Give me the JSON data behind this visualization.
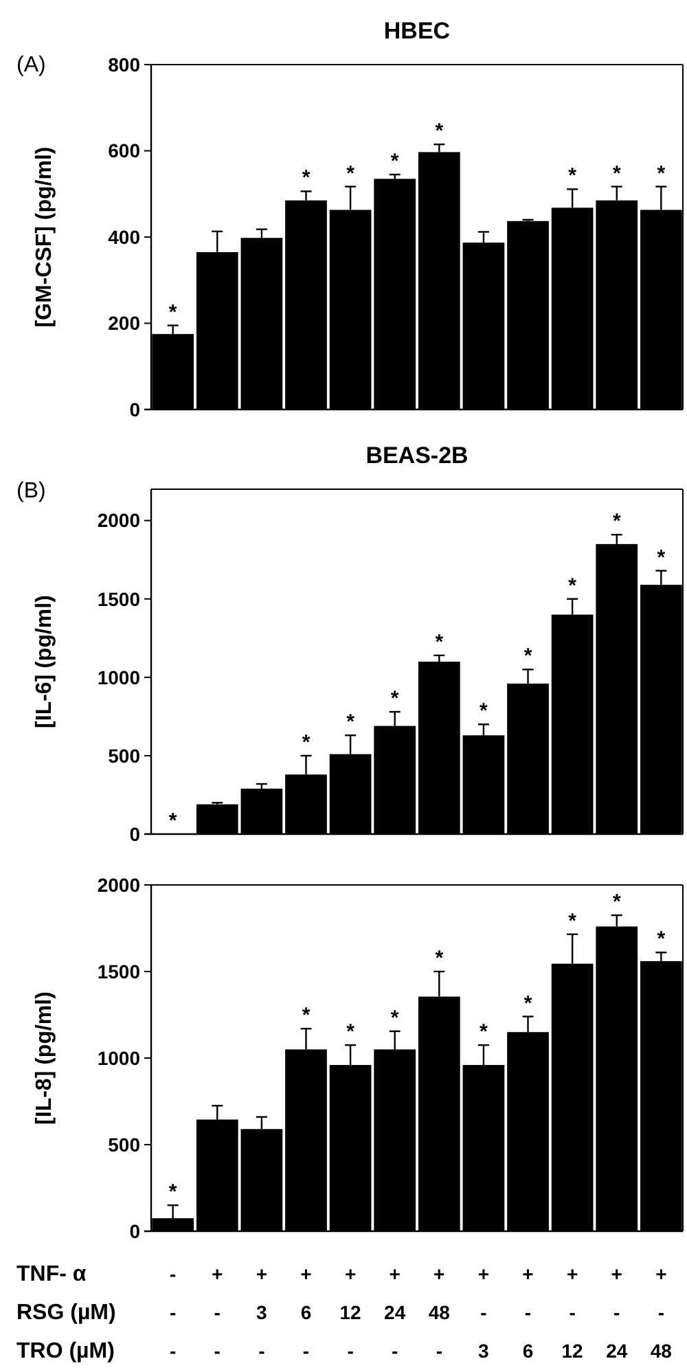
{
  "chart_data": [
    {
      "type": "bar",
      "title": "HBEC",
      "ylabel": "[GM-CSF] (pg/ml)",
      "annotations": [
        "(A)"
      ],
      "categories": [
        null,
        null,
        null,
        null,
        null,
        null,
        null,
        null,
        null,
        null,
        null,
        null
      ],
      "values": [
        175,
        365,
        398,
        485,
        463,
        535,
        597,
        387,
        437,
        468,
        485,
        463
      ],
      "errors": [
        20,
        48,
        20,
        21,
        54,
        10,
        18,
        25,
        3,
        43,
        32,
        54
      ],
      "value_labels": [
        "*",
        null,
        null,
        "*",
        "*",
        "*",
        "*",
        null,
        null,
        "*",
        "*",
        "*"
      ],
      "color": "#000000",
      "ylim": [
        0,
        800
      ],
      "yticks": [
        0,
        200,
        400,
        600,
        800
      ],
      "grid": false
    },
    {
      "type": "bar",
      "title": "BEAS-2B",
      "ylabel": "[IL-6] (pg/ml)",
      "annotations": [
        "(B)"
      ],
      "categories": [
        null,
        null,
        null,
        null,
        null,
        null,
        null,
        null,
        null,
        null,
        null,
        null
      ],
      "values": [
        0,
        190,
        290,
        380,
        510,
        690,
        1100,
        630,
        960,
        1400,
        1850,
        1590
      ],
      "errors": [
        null,
        10,
        30,
        120,
        120,
        90,
        40,
        70,
        90,
        100,
        60,
        90
      ],
      "value_labels": [
        "*",
        null,
        null,
        "*",
        "*",
        "*",
        "*",
        "*",
        "*",
        "*",
        "*",
        "*"
      ],
      "color": "#000000",
      "ylim": [
        0,
        2200
      ],
      "yticks": [
        0,
        500,
        1000,
        1500,
        2000
      ],
      "grid": false
    },
    {
      "type": "bar",
      "ylabel": "[IL-8] (pg/ml)",
      "annotations": [
        "TNF- α",
        "RSG (µM)",
        "TRO (µM)"
      ],
      "categories": [
        "-\n-\n-",
        "+\n-\n-",
        "+\n3\n-",
        "+\n6\n-",
        "+\n12\n-",
        "+\n24\n-",
        "+\n48\n-",
        "+\n-\n3",
        "+\n-\n6",
        "+\n-\n12",
        "+\n-\n24",
        "+\n-\n48"
      ],
      "values": [
        75,
        645,
        590,
        1050,
        960,
        1050,
        1355,
        960,
        1150,
        1545,
        1760,
        1560
      ],
      "errors": [
        75,
        80,
        70,
        120,
        115,
        105,
        145,
        115,
        90,
        170,
        65,
        50
      ],
      "value_labels": [
        "*",
        null,
        null,
        "*",
        "*",
        "*",
        "*",
        "*",
        "*",
        "*",
        "*",
        "*"
      ],
      "color": "#000000",
      "ylim": [
        0,
        2000
      ],
      "yticks": [
        0,
        500,
        1000,
        1500,
        2000
      ],
      "grid": false
    }
  ]
}
